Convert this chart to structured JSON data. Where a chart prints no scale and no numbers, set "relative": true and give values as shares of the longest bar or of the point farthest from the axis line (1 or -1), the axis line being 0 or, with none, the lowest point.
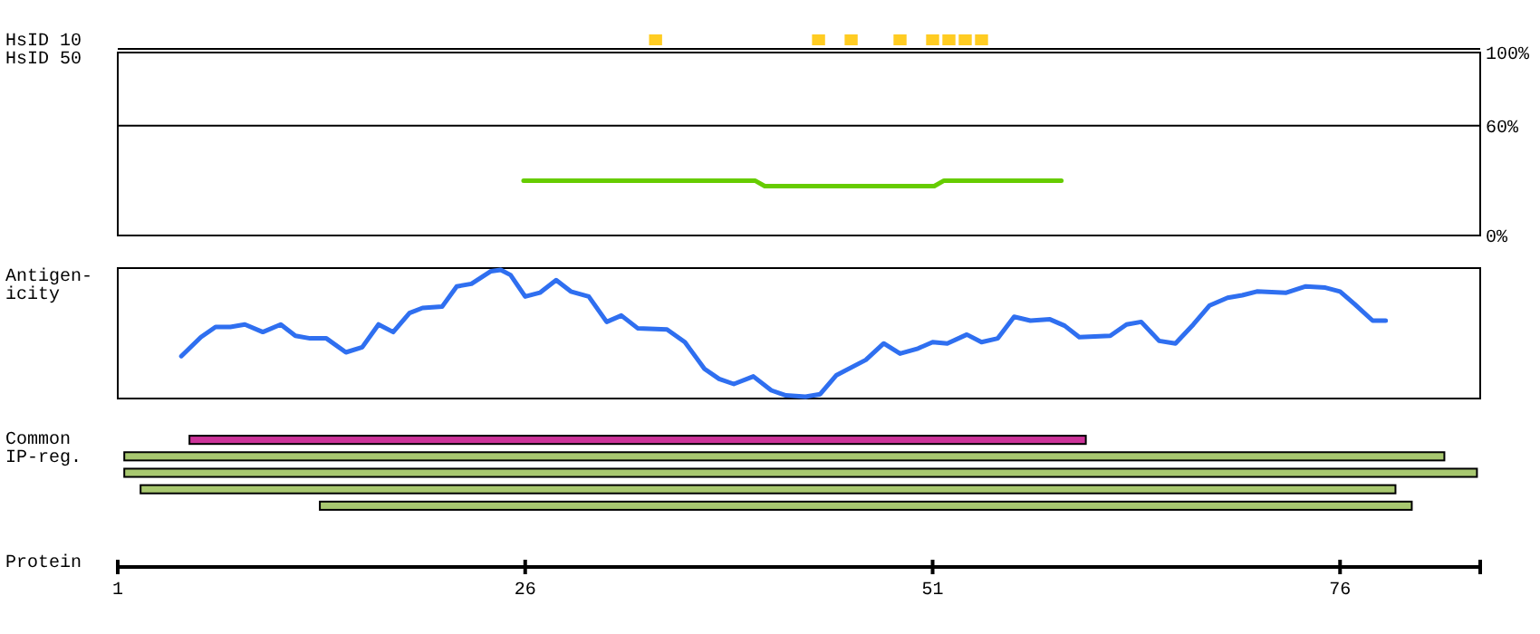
{
  "chart_data": [
    {
      "type": "bar",
      "ylabel": "HsID 10",
      "x": [
        34,
        44,
        46,
        49,
        51,
        52,
        53,
        54
      ],
      "values": [
        1,
        1,
        1,
        1,
        1,
        1,
        1,
        1
      ],
      "relative": true,
      "color": "#ffcc22",
      "xlim": [
        1,
        84.6
      ],
      "tick_labels": false
    },
    {
      "type": "line",
      "ylabel": "HsID 50",
      "series": [
        {
          "color": "#66cc00",
          "x": [
            25.9,
            40.1,
            40.7,
            51.1,
            51.7,
            58.9
          ],
          "values": [
            30,
            30,
            27,
            27,
            30,
            30
          ]
        }
      ],
      "xlim": [
        1,
        84.6
      ],
      "ylim": [
        0,
        100
      ],
      "yticks": [
        {
          "value": 0,
          "label": "0%"
        },
        {
          "value": 60,
          "label": "60%"
        },
        {
          "value": 100,
          "label": "100%"
        }
      ],
      "grid": "y",
      "tick_labels": "y"
    },
    {
      "type": "line",
      "ylabel": "Antigen-\nicity",
      "relative": true,
      "xlim": [
        1,
        84.6
      ],
      "tick_labels": false,
      "series": [
        {
          "color": "#2f6ff0",
          "x": [
            4.9,
            6.1,
            7,
            7.9,
            8.8,
            9.9,
            11,
            11.9,
            12.8,
            13.8,
            15,
            16,
            17,
            17.9,
            18.9,
            19.7,
            20.9,
            21.8,
            22.7,
            23.9,
            24.5,
            25.1,
            26,
            26.9,
            27.9,
            28.8,
            29.9,
            31,
            31.9,
            32.9,
            34.7,
            35.8,
            37,
            37.9,
            38.8,
            40,
            41.1,
            42,
            43.2,
            44.1,
            45.1,
            46.9,
            48,
            49,
            50.1,
            51,
            51.9,
            53.1,
            54,
            55,
            56,
            57,
            58.2,
            59.1,
            60,
            61.9,
            62.9,
            63.8,
            64.9,
            65.9,
            67,
            68,
            69.1,
            70,
            70.9,
            72.7,
            73.9,
            75.1,
            76,
            76.9,
            78,
            78.8
          ],
          "values": [
            0.32,
            0.47,
            0.55,
            0.55,
            0.57,
            0.51,
            0.57,
            0.48,
            0.46,
            0.46,
            0.35,
            0.39,
            0.57,
            0.51,
            0.66,
            0.7,
            0.71,
            0.87,
            0.89,
            0.99,
            1,
            0.96,
            0.79,
            0.82,
            0.92,
            0.83,
            0.79,
            0.59,
            0.64,
            0.54,
            0.53,
            0.43,
            0.22,
            0.14,
            0.1,
            0.16,
            0.05,
            0.01,
            0,
            0.02,
            0.17,
            0.29,
            0.42,
            0.34,
            0.38,
            0.43,
            0.42,
            0.49,
            0.43,
            0.46,
            0.63,
            0.6,
            0.61,
            0.56,
            0.47,
            0.48,
            0.57,
            0.59,
            0.44,
            0.42,
            0.57,
            0.72,
            0.78,
            0.8,
            0.83,
            0.82,
            0.87,
            0.86,
            0.83,
            0.73,
            0.6,
            0.6
          ]
        }
      ]
    },
    {
      "type": "bar",
      "orientation": "horizontal",
      "ylabel": "Common\nIP-reg.",
      "xlabel": "Protein",
      "categories": [
        null,
        null,
        null,
        null,
        null
      ],
      "base": [
        5.4,
        1.4,
        1.4,
        2.4,
        13.4
      ],
      "values": [
        55,
        81,
        83,
        77,
        67
      ],
      "colors": [
        "#cc3399",
        "#a8c870",
        "#a8c870",
        "#a8c870",
        "#a8c870"
      ],
      "xlim": [
        1,
        84.6
      ],
      "xticks": [
        1,
        26,
        51,
        76
      ],
      "tick_labels": "x"
    }
  ]
}
